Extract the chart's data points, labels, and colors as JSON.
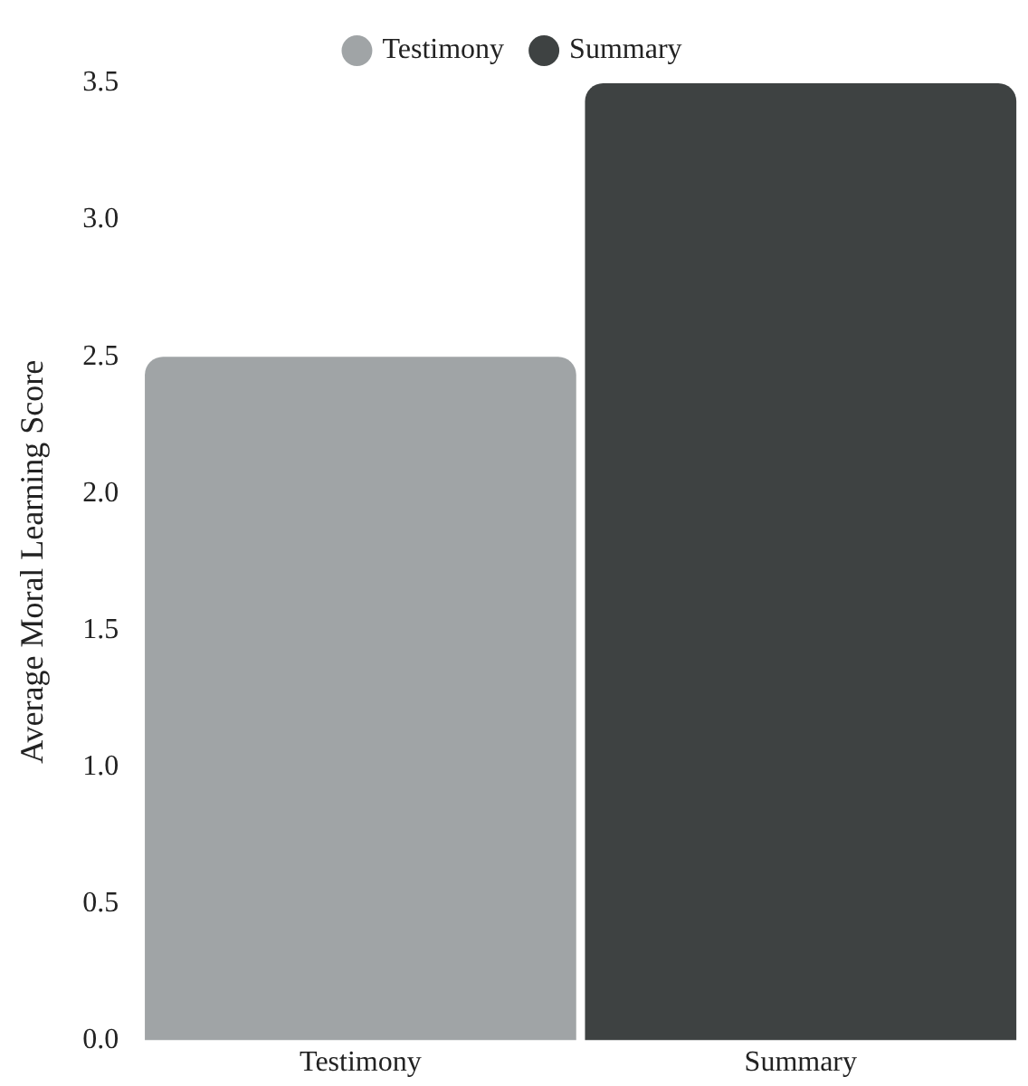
{
  "chart_data": {
    "type": "bar",
    "ylabel": "Average Moral Learning Score",
    "categories": [
      "Testimony",
      "Summary"
    ],
    "series": [
      {
        "name": "Testimony",
        "color": "#a0a4a6",
        "values": [
          2.5,
          null
        ]
      },
      {
        "name": "Summary",
        "color": "#3e4242",
        "values": [
          null,
          3.5
        ]
      }
    ],
    "ylim": [
      0,
      3.5
    ],
    "yticks": [
      {
        "value": 0,
        "label": "0.0"
      },
      0.5,
      {
        "value": 1,
        "label": "1.0"
      },
      1.5,
      {
        "value": 2,
        "label": "2.0"
      },
      2.5,
      {
        "value": 3,
        "label": "3.0"
      },
      3.5
    ],
    "legend": "top",
    "grid": false
  }
}
